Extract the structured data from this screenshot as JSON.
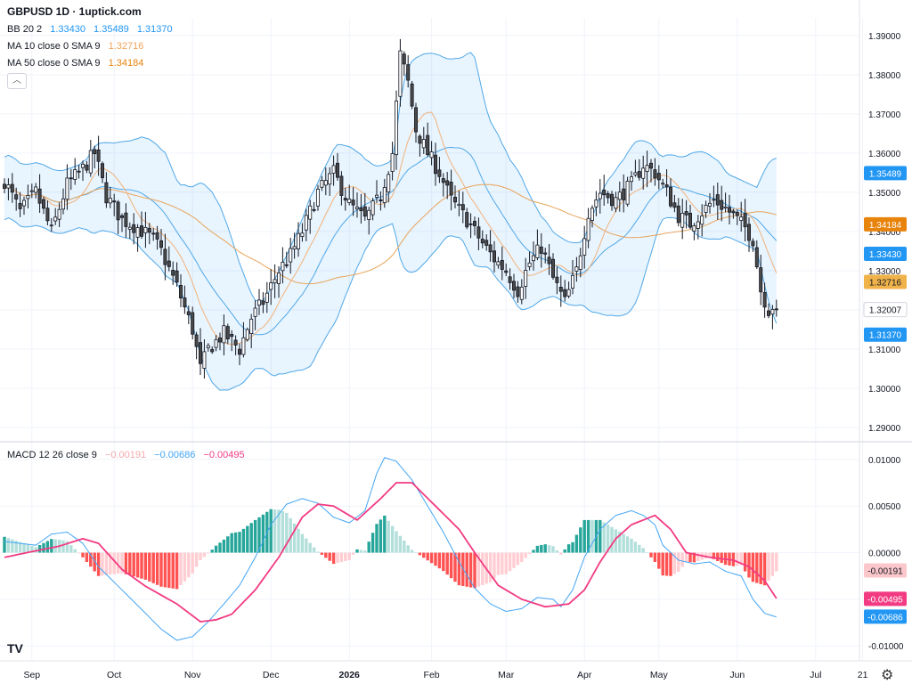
{
  "header": {
    "title": "GBPUSD 1D · 1uptick.com",
    "bb": {
      "label": "BB 20 2",
      "values": [
        "1.33430",
        "1.35489",
        "1.31370"
      ],
      "color": "#2196f3"
    },
    "ma10": {
      "label": "MA 10 close 0 SMA 9",
      "value": "1.32716",
      "color": "#f0a35a"
    },
    "ma50": {
      "label": "MA 50 close 0 SMA 9",
      "value": "1.34184",
      "color": "#e8830c"
    },
    "macd": {
      "label": "MACD 12 26 close 9",
      "values": [
        "−0.00191",
        "−0.00686",
        "−0.00495"
      ],
      "colors": [
        "#f5a9ad",
        "#42a5f5",
        "#f23b82"
      ]
    },
    "collapse_icon": "chevron-up-icon",
    "settings_icon": "gear-icon"
  },
  "chart_data": {
    "type": "candlestick",
    "price_axis": {
      "ticks": [
        "1.39000",
        "1.38000",
        "1.37000",
        "1.36000",
        "1.35000",
        "1.34000",
        "1.33000",
        "1.32000",
        "1.31000",
        "1.30000",
        "1.29000"
      ],
      "tick_values": [
        1.39,
        1.38,
        1.37,
        1.36,
        1.35,
        1.34,
        1.33,
        1.32,
        1.31,
        1.3,
        1.29
      ],
      "ylim": [
        1.2866,
        1.3945
      ]
    },
    "macd_axis": {
      "ticks": [
        "0.01000",
        "0.00500",
        "0.00000",
        "-0.00500",
        "-0.01000"
      ],
      "tick_values": [
        0.01,
        0.005,
        0,
        -0.005,
        -0.01
      ],
      "ylim": [
        -0.0116,
        0.0118
      ]
    },
    "x_axis": {
      "labels": [
        "Sep",
        "Oct",
        "Nov",
        "Dec",
        "2026",
        "Feb",
        "Mar",
        "Apr",
        "May",
        "Jun",
        "Jul",
        "21"
      ],
      "bold_label": "2026",
      "bar_index": [
        7,
        28,
        48,
        68,
        88,
        109,
        128,
        148,
        167,
        187,
        207,
        219
      ]
    },
    "price_tags": [
      {
        "text": "1.35489",
        "value": 1.35489,
        "bg": "#2196f3",
        "fg": "#ffffff"
      },
      {
        "text": "1.34184",
        "value": 1.34184,
        "bg": "#e8830c",
        "fg": "#ffffff"
      },
      {
        "text": "1.33430",
        "value": 1.3343,
        "bg": "#2196f3",
        "fg": "#ffffff"
      },
      {
        "text": "1.32716",
        "value": 1.32716,
        "bg": "#f0b34a",
        "fg": "#131722"
      },
      {
        "text": "1.32007",
        "value": 1.32007,
        "bg": "#ffffff",
        "fg": "#131722"
      },
      {
        "text": "1.31370",
        "value": 1.3137,
        "bg": "#2196f3",
        "fg": "#ffffff"
      }
    ],
    "macd_tags": [
      {
        "text": "-0.00191",
        "value": -0.00191,
        "bg": "#fbc7ca",
        "fg": "#131722"
      },
      {
        "text": "-0.00495",
        "value": -0.00495,
        "bg": "#f23b82",
        "fg": "#ffffff"
      },
      {
        "text": "-0.00686",
        "value": -0.00686,
        "bg": "#2196f3",
        "fg": "#ffffff"
      }
    ],
    "close_anchors": [
      [
        0,
        1.353
      ],
      [
        4,
        1.345
      ],
      [
        8,
        1.35
      ],
      [
        12,
        1.34
      ],
      [
        16,
        1.352
      ],
      [
        20,
        1.356
      ],
      [
        23,
        1.36
      ],
      [
        26,
        1.349
      ],
      [
        30,
        1.343
      ],
      [
        34,
        1.341
      ],
      [
        38,
        1.338
      ],
      [
        40,
        1.335
      ],
      [
        44,
        1.326
      ],
      [
        48,
        1.315
      ],
      [
        50,
        1.305
      ],
      [
        52,
        1.31
      ],
      [
        56,
        1.314
      ],
      [
        60,
        1.31
      ],
      [
        63,
        1.318
      ],
      [
        66,
        1.322
      ],
      [
        70,
        1.33
      ],
      [
        73,
        1.334
      ],
      [
        76,
        1.34
      ],
      [
        80,
        1.35
      ],
      [
        84,
        1.355
      ],
      [
        88,
        1.347
      ],
      [
        92,
        1.343
      ],
      [
        96,
        1.349
      ],
      [
        99,
        1.36
      ],
      [
        101,
        1.385
      ],
      [
        103,
        1.378
      ],
      [
        105,
        1.366
      ],
      [
        108,
        1.36
      ],
      [
        111,
        1.355
      ],
      [
        114,
        1.348
      ],
      [
        118,
        1.343
      ],
      [
        122,
        1.337
      ],
      [
        125,
        1.333
      ],
      [
        128,
        1.33
      ],
      [
        131,
        1.325
      ],
      [
        134,
        1.332
      ],
      [
        137,
        1.336
      ],
      [
        140,
        1.328
      ],
      [
        143,
        1.322
      ],
      [
        146,
        1.33
      ],
      [
        149,
        1.345
      ],
      [
        152,
        1.35
      ],
      [
        156,
        1.348
      ],
      [
        160,
        1.352
      ],
      [
        163,
        1.357
      ],
      [
        166,
        1.355
      ],
      [
        169,
        1.35
      ],
      [
        172,
        1.344
      ],
      [
        175,
        1.342
      ],
      [
        178,
        1.345
      ],
      [
        181,
        1.348
      ],
      [
        184,
        1.346
      ],
      [
        187,
        1.343
      ],
      [
        189,
        1.341
      ],
      [
        191,
        1.338
      ],
      [
        193,
        1.325
      ],
      [
        195,
        1.32
      ],
      [
        196,
        1.321
      ],
      [
        197,
        1.32
      ]
    ],
    "macd_line_anchors": [
      [
        0,
        0.0012
      ],
      [
        8,
        0.0008
      ],
      [
        12,
        0.002
      ],
      [
        16,
        0.0022
      ],
      [
        20,
        0.001
      ],
      [
        24,
        -0.0015
      ],
      [
        30,
        -0.004
      ],
      [
        36,
        -0.0065
      ],
      [
        40,
        -0.0082
      ],
      [
        44,
        -0.0094
      ],
      [
        48,
        -0.009
      ],
      [
        52,
        -0.0074
      ],
      [
        56,
        -0.0055
      ],
      [
        60,
        -0.0035
      ],
      [
        64,
        -0.0005
      ],
      [
        68,
        0.003
      ],
      [
        72,
        0.0052
      ],
      [
        76,
        0.0058
      ],
      [
        80,
        0.0053
      ],
      [
        84,
        0.0038
      ],
      [
        88,
        0.0032
      ],
      [
        92,
        0.0045
      ],
      [
        95,
        0.0085
      ],
      [
        97,
        0.0102
      ],
      [
        100,
        0.0098
      ],
      [
        104,
        0.0078
      ],
      [
        108,
        0.005
      ],
      [
        112,
        0.0022
      ],
      [
        116,
        -0.001
      ],
      [
        120,
        -0.0038
      ],
      [
        124,
        -0.0055
      ],
      [
        128,
        -0.0063
      ],
      [
        132,
        -0.006
      ],
      [
        136,
        -0.0048
      ],
      [
        140,
        -0.005
      ],
      [
        142,
        -0.0058
      ],
      [
        145,
        -0.004
      ],
      [
        148,
        -0.0005
      ],
      [
        152,
        0.0025
      ],
      [
        156,
        0.004
      ],
      [
        160,
        0.0045
      ],
      [
        163,
        0.004
      ],
      [
        166,
        0.003
      ],
      [
        168,
        0.0008
      ],
      [
        172,
        -0.0008
      ],
      [
        176,
        -0.0012
      ],
      [
        180,
        -0.001
      ],
      [
        184,
        -0.002
      ],
      [
        188,
        -0.0025
      ],
      [
        191,
        -0.005
      ],
      [
        194,
        -0.0065
      ],
      [
        197,
        -0.0069
      ]
    ],
    "signal_line_anchors": [
      [
        0,
        -0.0005
      ],
      [
        8,
        0.0002
      ],
      [
        14,
        0.0007
      ],
      [
        20,
        0.0015
      ],
      [
        24,
        0.001
      ],
      [
        30,
        -0.0018
      ],
      [
        36,
        -0.0036
      ],
      [
        44,
        -0.0055
      ],
      [
        50,
        -0.0074
      ],
      [
        54,
        -0.0072
      ],
      [
        58,
        -0.0066
      ],
      [
        64,
        -0.004
      ],
      [
        70,
        -0.0005
      ],
      [
        76,
        0.0038
      ],
      [
        80,
        0.0052
      ],
      [
        84,
        0.005
      ],
      [
        90,
        0.0035
      ],
      [
        96,
        0.0058
      ],
      [
        100,
        0.0075
      ],
      [
        104,
        0.0075
      ],
      [
        110,
        0.005
      ],
      [
        116,
        0.0025
      ],
      [
        120,
        0.0
      ],
      [
        126,
        -0.0035
      ],
      [
        132,
        -0.005
      ],
      [
        138,
        -0.0058
      ],
      [
        144,
        -0.0055
      ],
      [
        148,
        -0.004
      ],
      [
        152,
        -0.001
      ],
      [
        156,
        0.0015
      ],
      [
        160,
        0.003
      ],
      [
        166,
        0.004
      ],
      [
        170,
        0.0025
      ],
      [
        174,
        0.0
      ],
      [
        180,
        -0.0005
      ],
      [
        186,
        -0.0008
      ],
      [
        190,
        -0.0015
      ],
      [
        194,
        -0.003
      ],
      [
        197,
        -0.0049
      ]
    ]
  }
}
